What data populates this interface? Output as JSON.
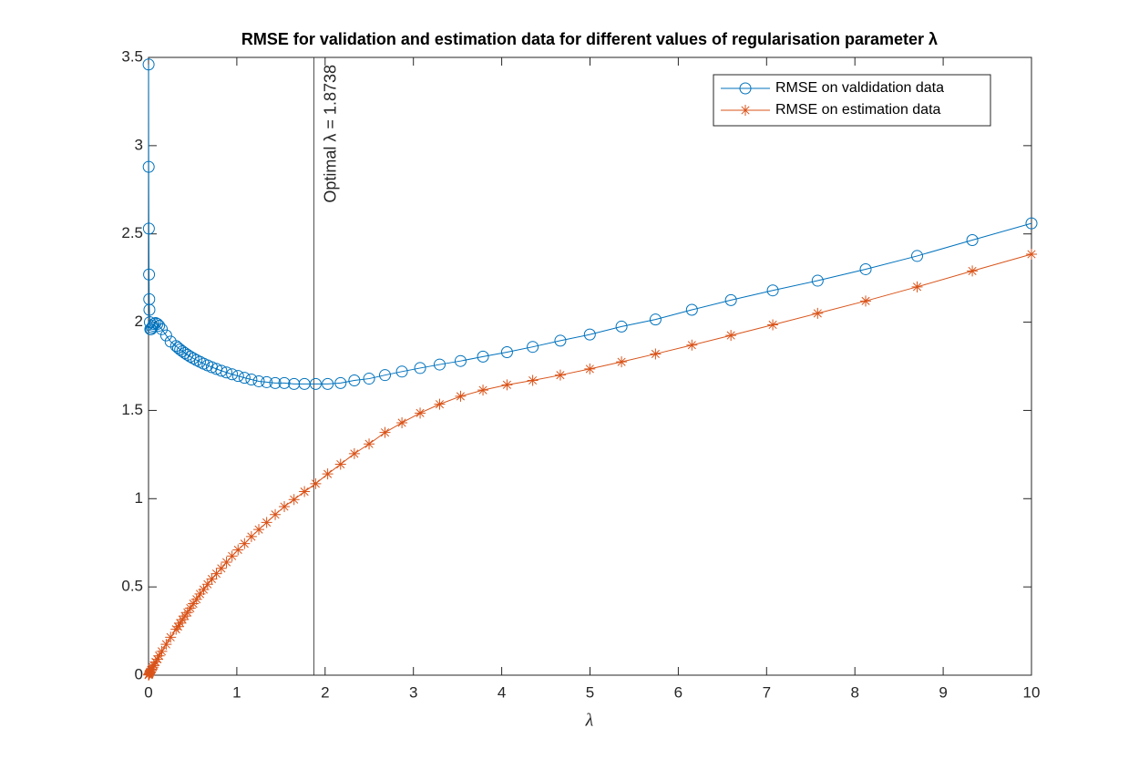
{
  "chart_data": {
    "type": "line",
    "title": "RMSE for validation and estimation data for different values of regularisation parameter λ",
    "xlabel": "λ",
    "x": [
      10,
      9.33,
      8.705,
      8.122,
      7.578,
      7.07,
      6.596,
      6.154,
      5.742,
      5.357,
      4.998,
      4.664,
      4.351,
      4.06,
      3.788,
      3.534,
      3.297,
      3.076,
      2.87,
      2.678,
      2.498,
      2.331,
      2.175,
      2.029,
      1.893,
      1.766,
      1.648,
      1.538,
      1.435,
      1.338,
      1.249,
      1.165,
      1.087,
      1.014,
      0.946,
      0.883,
      0.824,
      0.769,
      0.717,
      0.669,
      0.624,
      0.583,
      0.544,
      0.507,
      0.473,
      0.441,
      0.412,
      0.384,
      0.358,
      0.334,
      0.312,
      0.25,
      0.2,
      0.15,
      0.12,
      0.1,
      0.08,
      0.06,
      0.05,
      0.04,
      0.03,
      0.02,
      0.015,
      0.01,
      0.008,
      0.006,
      0.004,
      0.002,
      0.001
    ],
    "series": [
      {
        "name": "RMSE on valdidation data",
        "color": "#0072bd",
        "marker": "circle",
        "values": [
          2.56,
          2.465,
          2.375,
          2.3,
          2.235,
          2.18,
          2.125,
          2.07,
          2.015,
          1.975,
          1.93,
          1.895,
          1.86,
          1.83,
          1.805,
          1.78,
          1.76,
          1.74,
          1.72,
          1.7,
          1.68,
          1.67,
          1.655,
          1.65,
          1.65,
          1.65,
          1.65,
          1.655,
          1.655,
          1.66,
          1.665,
          1.675,
          1.685,
          1.695,
          1.705,
          1.715,
          1.725,
          1.735,
          1.745,
          1.755,
          1.765,
          1.775,
          1.785,
          1.795,
          1.805,
          1.815,
          1.825,
          1.835,
          1.845,
          1.855,
          1.865,
          1.89,
          1.925,
          1.96,
          1.98,
          1.99,
          1.995,
          1.99,
          1.98,
          1.97,
          1.96,
          1.96,
          2.0,
          2.07,
          2.13,
          2.27,
          2.53,
          2.88,
          3.46
        ]
      },
      {
        "name": "RMSE on estimation data",
        "color": "#d95319",
        "marker": "asterisk",
        "values": [
          2.385,
          2.29,
          2.2,
          2.12,
          2.05,
          1.985,
          1.925,
          1.87,
          1.82,
          1.775,
          1.735,
          1.7,
          1.67,
          1.645,
          1.615,
          1.58,
          1.535,
          1.485,
          1.43,
          1.375,
          1.31,
          1.255,
          1.195,
          1.14,
          1.085,
          1.04,
          0.995,
          0.955,
          0.91,
          0.865,
          0.825,
          0.785,
          0.745,
          0.71,
          0.675,
          0.64,
          0.605,
          0.575,
          0.545,
          0.515,
          0.485,
          0.46,
          0.43,
          0.405,
          0.38,
          0.355,
          0.335,
          0.315,
          0.295,
          0.275,
          0.26,
          0.215,
          0.175,
          0.135,
          0.11,
          0.09,
          0.075,
          0.055,
          0.045,
          0.035,
          0.03,
          0.02,
          0.015,
          0.01,
          0.008,
          0.006,
          0.004,
          0.002,
          0.001
        ]
      }
    ],
    "annotation": {
      "text": "Optimal λ = 1.8738",
      "x": 1.8738
    },
    "xlim": [
      0,
      10
    ],
    "xticks": [
      0,
      1,
      2,
      3,
      4,
      5,
      6,
      7,
      8,
      9,
      10
    ],
    "ylim": [
      0,
      3.5
    ],
    "yticks": [
      0,
      0.5,
      1,
      1.5,
      2,
      2.5,
      3,
      3.5
    ],
    "legend": "top-right"
  }
}
